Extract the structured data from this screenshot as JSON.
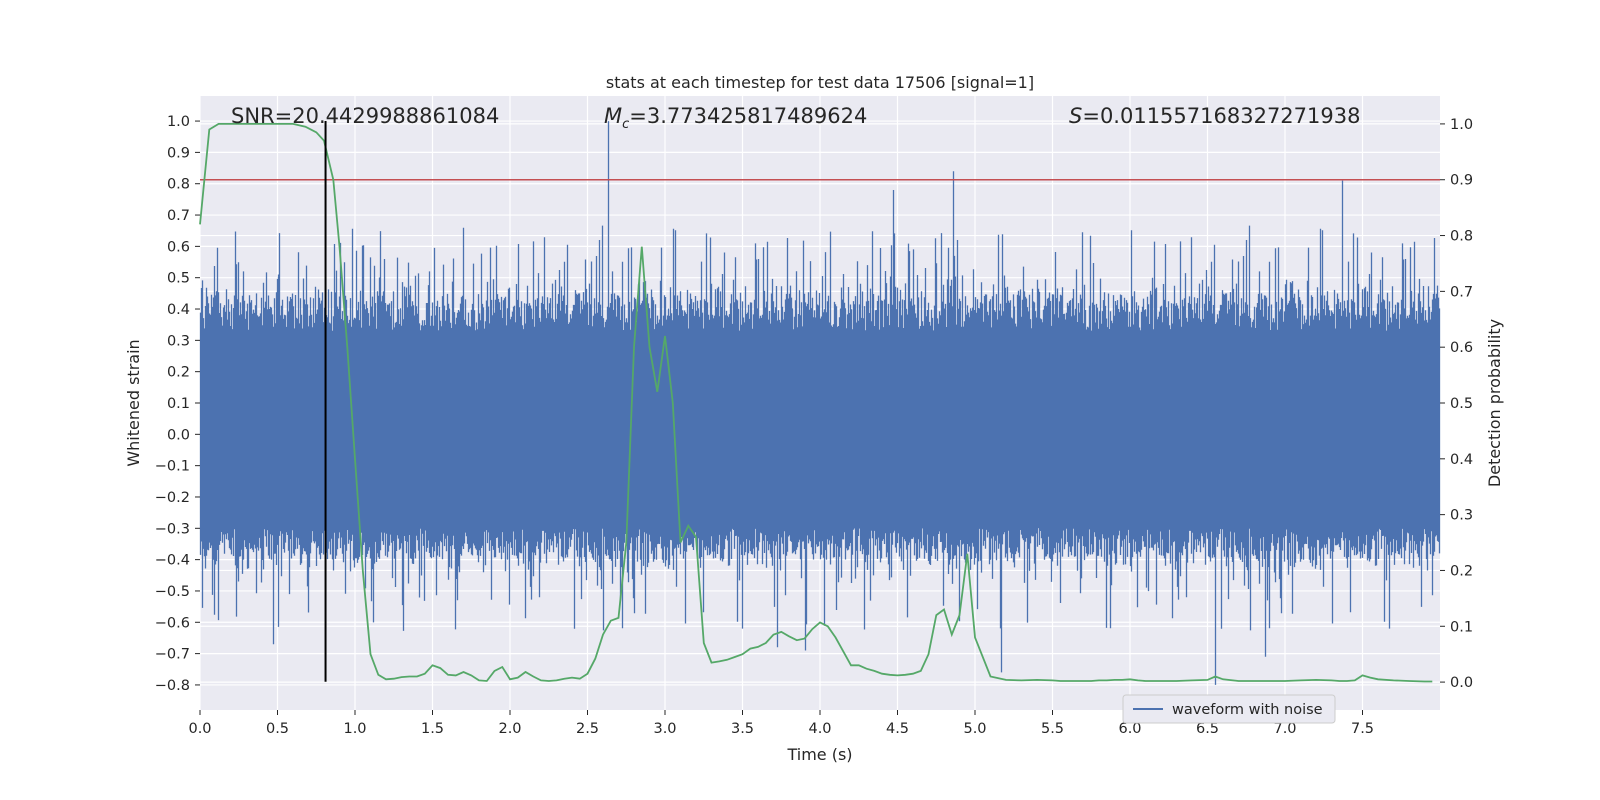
{
  "chart_data": {
    "type": "line",
    "title": "stats at each timestep for test data 17506 [signal=1]",
    "xlabel": "Time (s)",
    "ylabel_left": "Whitened strain",
    "ylabel_right": "Detection probability",
    "xlim": [
      0,
      8
    ],
    "ylim_left": [
      -0.88,
      1.08
    ],
    "ylim_right": [
      -0.05,
      1.05
    ],
    "x_ticks": [
      0.0,
      0.5,
      1.0,
      1.5,
      2.0,
      2.5,
      3.0,
      3.5,
      4.0,
      4.5,
      5.0,
      5.5,
      6.0,
      6.5,
      7.0,
      7.5
    ],
    "x_tick_labels": [
      "0.0",
      "0.5",
      "1.0",
      "1.5",
      "2.0",
      "2.5",
      "3.0",
      "3.5",
      "4.0",
      "4.5",
      "5.0",
      "5.5",
      "6.0",
      "6.5",
      "7.0",
      "7.5"
    ],
    "y_left_ticks": [
      1.0,
      0.9,
      0.8,
      0.7,
      0.6,
      0.5,
      0.4,
      0.3,
      0.2,
      0.1,
      0.0,
      -0.1,
      -0.2,
      -0.3,
      -0.4,
      -0.5,
      -0.6,
      -0.7,
      -0.8
    ],
    "y_left_tick_labels": [
      "1.0",
      "0.9",
      "0.8",
      "0.7",
      "0.6",
      "0.5",
      "0.4",
      "0.3",
      "0.2",
      "0.1",
      "0.0",
      "−0.1",
      "−0.2",
      "−0.3",
      "−0.4",
      "−0.5",
      "−0.6",
      "−0.7",
      "−0.8"
    ],
    "y_right_ticks": [
      1.0,
      0.9,
      0.8,
      0.7,
      0.6,
      0.5,
      0.4,
      0.3,
      0.2,
      0.1,
      0.0
    ],
    "y_right_tick_labels": [
      "1.0",
      "0.9",
      "0.8",
      "0.7",
      "0.6",
      "0.5",
      "0.4",
      "0.3",
      "0.2",
      "0.1",
      "0.0"
    ],
    "grid": true,
    "annotations": {
      "snr": "SNR=20.4429988861084",
      "mc_symbol": "M",
      "mc_sub": "c",
      "mc_value": "=3.773425817489624",
      "s_symbol": "S",
      "s_value": "=0.011557168327271938"
    },
    "threshold": {
      "axis": "right",
      "value": 0.9,
      "color": "#c44e52"
    },
    "event_marker": {
      "x": 0.81,
      "y_range": [
        -0.79,
        1.0
      ],
      "color": "#000000"
    },
    "series": [
      {
        "name": "waveform with noise",
        "axis": "left",
        "color": "#4c72b0",
        "sample_rate": 2048,
        "duration": 8.0,
        "typical_envelope": [
          -0.4,
          0.45
        ],
        "peaks": [
          {
            "x": 2.63,
            "y": 1.0
          },
          {
            "x": 4.86,
            "y": 0.84
          },
          {
            "x": 7.37,
            "y": 0.81
          },
          {
            "x": 4.47,
            "y": 0.78
          },
          {
            "x": 6.55,
            "y": -0.8
          },
          {
            "x": 5.17,
            "y": -0.76
          },
          {
            "x": 0.47,
            "y": -0.67
          },
          {
            "x": 6.87,
            "y": -0.71
          },
          {
            "x": 3.72,
            "y": -0.68
          },
          {
            "x": 3.9,
            "y": -0.69
          }
        ]
      },
      {
        "name": "detection probability",
        "axis": "right",
        "color": "#55a868",
        "x": [
          0.0,
          0.06,
          0.12,
          0.2,
          0.3,
          0.4,
          0.5,
          0.6,
          0.68,
          0.75,
          0.8,
          0.86,
          0.9,
          0.95,
          1.0,
          1.05,
          1.1,
          1.15,
          1.2,
          1.25,
          1.3,
          1.35,
          1.4,
          1.45,
          1.5,
          1.55,
          1.6,
          1.65,
          1.7,
          1.75,
          1.8,
          1.85,
          1.9,
          1.95,
          2.0,
          2.05,
          2.1,
          2.15,
          2.2,
          2.25,
          2.3,
          2.35,
          2.4,
          2.45,
          2.5,
          2.55,
          2.6,
          2.65,
          2.7,
          2.75,
          2.8,
          2.85,
          2.9,
          2.95,
          3.0,
          3.05,
          3.1,
          3.15,
          3.2,
          3.25,
          3.3,
          3.35,
          3.4,
          3.45,
          3.5,
          3.55,
          3.6,
          3.65,
          3.7,
          3.75,
          3.8,
          3.85,
          3.9,
          3.95,
          4.0,
          4.05,
          4.1,
          4.15,
          4.2,
          4.25,
          4.3,
          4.35,
          4.4,
          4.45,
          4.5,
          4.55,
          4.6,
          4.65,
          4.7,
          4.75,
          4.8,
          4.85,
          4.9,
          4.95,
          5.0,
          5.1,
          5.2,
          5.3,
          5.4,
          5.5,
          5.55,
          5.6,
          5.65,
          5.7,
          5.75,
          5.8,
          5.85,
          5.9,
          5.95,
          6.0,
          6.05,
          6.1,
          6.2,
          6.3,
          6.4,
          6.5,
          6.55,
          6.6,
          6.7,
          6.8,
          6.9,
          7.0,
          7.1,
          7.2,
          7.3,
          7.35,
          7.4,
          7.45,
          7.5,
          7.55,
          7.6,
          7.7,
          7.8,
          7.9,
          7.95
        ],
        "values": [
          0.82,
          0.99,
          1.0,
          1.0,
          1.0,
          1.0,
          1.0,
          1.0,
          0.995,
          0.985,
          0.97,
          0.9,
          0.78,
          0.6,
          0.4,
          0.2,
          0.05,
          0.013,
          0.005,
          0.006,
          0.009,
          0.01,
          0.01,
          0.015,
          0.03,
          0.025,
          0.013,
          0.012,
          0.018,
          0.012,
          0.003,
          0.002,
          0.02,
          0.027,
          0.005,
          0.008,
          0.018,
          0.01,
          0.003,
          0.002,
          0.003,
          0.006,
          0.008,
          0.006,
          0.015,
          0.042,
          0.085,
          0.11,
          0.115,
          0.25,
          0.6,
          0.78,
          0.6,
          0.52,
          0.62,
          0.5,
          0.25,
          0.28,
          0.26,
          0.07,
          0.035,
          0.037,
          0.04,
          0.045,
          0.05,
          0.06,
          0.063,
          0.07,
          0.085,
          0.09,
          0.082,
          0.075,
          0.078,
          0.095,
          0.107,
          0.1,
          0.08,
          0.055,
          0.03,
          0.03,
          0.024,
          0.02,
          0.015,
          0.013,
          0.012,
          0.013,
          0.015,
          0.02,
          0.05,
          0.12,
          0.13,
          0.085,
          0.12,
          0.23,
          0.08,
          0.01,
          0.004,
          0.003,
          0.004,
          0.003,
          0.002,
          0.002,
          0.002,
          0.002,
          0.002,
          0.003,
          0.003,
          0.004,
          0.004,
          0.005,
          0.003,
          0.002,
          0.002,
          0.002,
          0.003,
          0.004,
          0.01,
          0.005,
          0.002,
          0.002,
          0.002,
          0.002,
          0.003,
          0.004,
          0.003,
          0.002,
          0.002,
          0.003,
          0.012,
          0.008,
          0.005,
          0.003,
          0.002,
          0.001,
          0.001
        ]
      }
    ],
    "legend": {
      "entries": [
        "waveform with noise"
      ],
      "placement": "lower-right"
    }
  }
}
